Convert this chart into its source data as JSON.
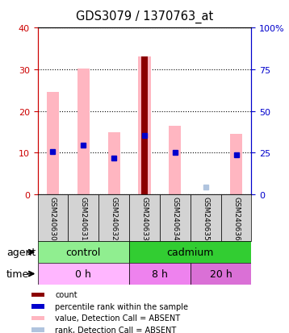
{
  "title": "GDS3079 / 1370763_at",
  "samples": [
    "GSM240630",
    "GSM240631",
    "GSM240632",
    "GSM240633",
    "GSM240634",
    "GSM240635",
    "GSM240636"
  ],
  "pink_bars": [
    24.5,
    30.2,
    15.0,
    33.0,
    16.5,
    0.0,
    14.5
  ],
  "red_bars": [
    0.0,
    0.0,
    0.0,
    33.0,
    0.0,
    0.0,
    0.0
  ],
  "blue_squares": [
    10.2,
    11.8,
    8.8,
    14.2,
    10.0,
    0.0,
    9.5
  ],
  "light_blue_squares": [
    0.0,
    0.0,
    0.0,
    0.0,
    0.0,
    1.8,
    0.0
  ],
  "ylim": [
    0,
    40
  ],
  "yticks": [
    0,
    10,
    20,
    30,
    40
  ],
  "ytick_labels_left": [
    "0",
    "10",
    "20",
    "30",
    "40"
  ],
  "ytick_labels_right": [
    "0",
    "25",
    "50",
    "75",
    "100%"
  ],
  "agent_groups": [
    {
      "label": "control",
      "start": 0,
      "end": 3,
      "color": "#90EE90"
    },
    {
      "label": "cadmium",
      "start": 3,
      "end": 7,
      "color": "#32CD32"
    }
  ],
  "time_groups": [
    {
      "label": "0 h",
      "start": 0,
      "end": 3,
      "color": "#FFB6FF"
    },
    {
      "label": "8 h",
      "start": 3,
      "end": 5,
      "color": "#EE82EE"
    },
    {
      "label": "20 h",
      "start": 5,
      "end": 7,
      "color": "#DA70D6"
    }
  ],
  "legend_items": [
    {
      "color": "#8B0000",
      "label": "count"
    },
    {
      "color": "#0000CD",
      "label": "percentile rank within the sample"
    },
    {
      "color": "#FFB6C1",
      "label": "value, Detection Call = ABSENT"
    },
    {
      "color": "#B0C4DE",
      "label": "rank, Detection Call = ABSENT"
    }
  ],
  "bar_width": 0.4,
  "pink_color": "#FFB6C1",
  "red_color": "#8B0000",
  "blue_color": "#0000CD",
  "light_blue_color": "#B0C4DE",
  "sample_bg": "#D3D3D3",
  "left_axis_color": "#CC0000",
  "right_axis_color": "#0000CC"
}
